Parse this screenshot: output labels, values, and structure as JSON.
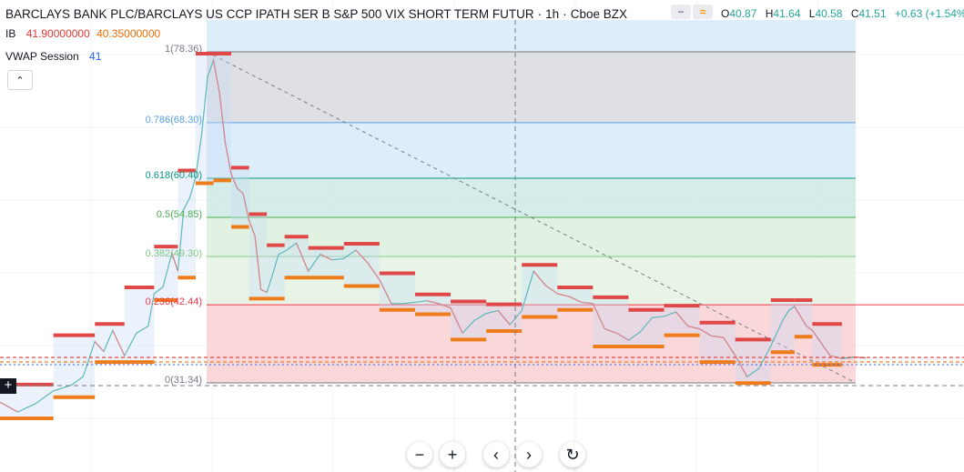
{
  "header": {
    "symbol": "BARCLAYS BANK PLC/BARCLAYS US CCP IPATH SER B S&P 500 VIX SHORT TERM FUTUR",
    "interval": "1h",
    "exchange": "Cboe BZX",
    "ohlc": {
      "o_label": "O",
      "o": "40.87",
      "h_label": "H",
      "h": "41.64",
      "l_label": "L",
      "l": "40.58",
      "c_label": "C",
      "c": "41.51",
      "change": "+0.63 (+1.54%"
    }
  },
  "indicators": {
    "ib": {
      "name": "IB",
      "high": "41.90000000",
      "low": "40.35000000",
      "high_color": "#e53935",
      "low_color": "#ef6c00"
    },
    "vwap": {
      "name": "VWAP Session",
      "value": "41",
      "color": "#2962ff"
    }
  },
  "colors": {
    "up": "#26a69a",
    "down": "#ef5350",
    "ib_high": "#e04848",
    "ib_low": "#ef7c1a",
    "accent": "#2962ff"
  },
  "chart_data": {
    "type": "line",
    "title": "BARCLAYS BANK PLC/BARCLAYS US CCP IPATH SER B S&P 500 VIX SHORT TERM FUTUR · 1h · Cboe BZX",
    "ylim": [
      26,
      82
    ],
    "series": [
      {
        "name": "",
        "x": [
          0,
          6,
          12,
          18,
          24,
          28,
          32,
          35,
          38,
          42,
          46,
          50,
          52,
          55,
          58,
          60,
          62,
          64,
          66,
          68,
          70,
          72,
          74,
          76,
          78,
          80,
          82,
          84,
          86,
          88,
          90,
          92,
          94,
          96,
          98,
          100,
          104,
          108,
          112,
          116,
          120,
          124,
          128,
          132,
          136,
          140,
          144,
          148,
          152,
          156,
          160,
          164,
          168,
          172,
          176,
          180,
          184,
          188,
          192,
          196,
          200,
          204,
          208,
          212,
          216,
          220,
          224,
          228,
          232,
          236,
          240,
          244,
          248,
          252,
          256,
          260,
          264,
          266,
          268,
          270,
          272,
          274,
          276,
          280,
          284,
          288,
          292
        ],
        "values": [
          28.6,
          27.2,
          28.4,
          30.2,
          31.0,
          32.2,
          37.2,
          35.8,
          38.8,
          35.2,
          38.4,
          39.4,
          44.0,
          45.0,
          49.8,
          47.2,
          56.0,
          57.6,
          60.6,
          66.6,
          74.8,
          77.2,
          72.6,
          65.4,
          61.0,
          59.0,
          58.2,
          54.4,
          52.2,
          44.6,
          44.2,
          46.8,
          49.6,
          50.0,
          50.6,
          51.2,
          47.2,
          49.6,
          48.8,
          49.0,
          50.2,
          48.4,
          46.0,
          42.6,
          42.6,
          42.8,
          43.0,
          42.6,
          42.0,
          38.4,
          40.2,
          41.2,
          41.6,
          39.6,
          41.6,
          47.2,
          45.2,
          44.0,
          43.6,
          42.8,
          42.6,
          39.0,
          38.4,
          37.4,
          38.6,
          40.6,
          40.8,
          41.4,
          39.4,
          39.0,
          38.0,
          37.8,
          35.2,
          32.2,
          33.4,
          36.6,
          40.2,
          41.6,
          42.2,
          40.8,
          39.4,
          38.8,
          37.6,
          35.2,
          34.8,
          35.0,
          34.9
        ]
      }
    ],
    "fibonacci": {
      "levels": [
        {
          "label": "1(78.36)",
          "ratio": 1,
          "price": 78.36,
          "color": "#787b86"
        },
        {
          "label": "0.786(68.30)",
          "ratio": 0.786,
          "price": 68.3,
          "color": "#5aa3e8"
        },
        {
          "label": "0.618(60.40)",
          "ratio": 0.618,
          "price": 60.4,
          "color": "#089981"
        },
        {
          "label": "0.5(54.85)",
          "ratio": 0.5,
          "price": 54.85,
          "color": "#4caf50"
        },
        {
          "label": "0.382(49.30)",
          "ratio": 0.382,
          "price": 49.3,
          "color": "#81c784"
        },
        {
          "label": "0.236(42.44)",
          "ratio": 0.236,
          "price": 42.44,
          "color": "#f23645"
        },
        {
          "label": "0(31.34)",
          "ratio": 0,
          "price": 31.34,
          "color": "#787b86"
        }
      ]
    },
    "crosshair_price": 31.34
  },
  "toolbar": {
    "zoom_out": "−",
    "zoom_in": "+",
    "scroll_left": "‹",
    "scroll_right": "›",
    "reset": "↻"
  }
}
